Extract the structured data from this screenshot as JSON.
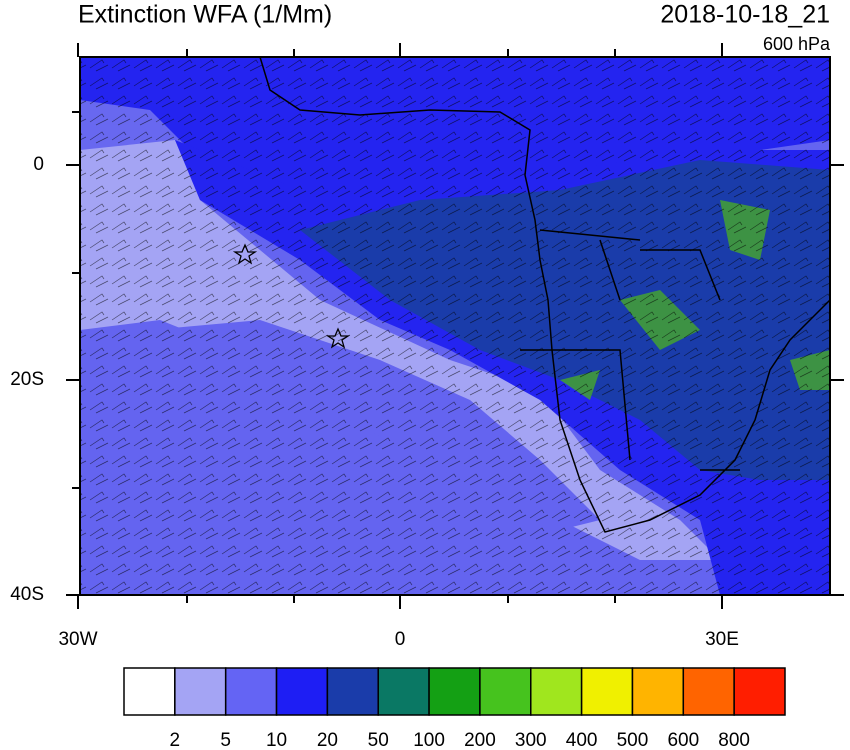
{
  "title": "Extinction WFA (1/Mm)",
  "date": "2018-10-18_21",
  "level": "600 hPa",
  "map": {
    "lon_ticks": [
      {
        "value": -30,
        "label": "30W"
      },
      0,
      {
        "value": 30,
        "label": "30E"
      }
    ],
    "lat_ticks": [
      0,
      {
        "value": -20,
        "label": "20S"
      },
      {
        "value": -40,
        "label": "40S"
      }
    ]
  },
  "colorbar": {
    "colors": [
      "#ffffff",
      "#a4a4f4",
      "#6464f4",
      "#1e1ef4",
      "#1a3caa",
      "#0a7864",
      "#14a014",
      "#46c31e",
      "#a0e61e",
      "#f0f000",
      "#ffb400",
      "#ff6400",
      "#ff1e00"
    ],
    "levels": [
      2,
      5,
      10,
      20,
      50,
      100,
      200,
      300,
      400,
      500,
      600,
      800
    ]
  }
}
